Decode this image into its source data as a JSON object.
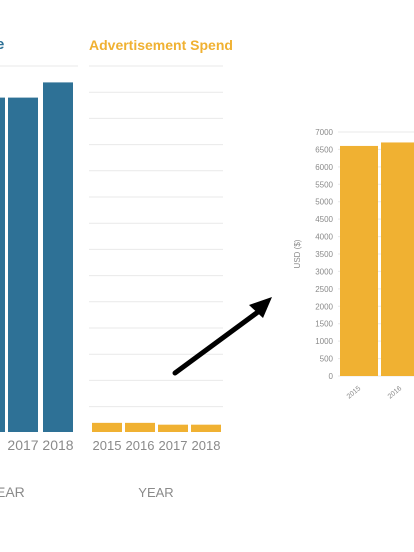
{
  "colors": {
    "revenue_bar": "#2e7196",
    "spend_bar": "#f0b132",
    "grid": "#e9e9e9",
    "axis_text": "#8a8a8a",
    "arrow": "#000000"
  },
  "icons": {
    "arrow": "arrow-icon"
  },
  "chart_data": [
    {
      "type": "bar",
      "panel": "left",
      "title": "e",
      "xlabel": "EAR",
      "categories": [
        "2017",
        "2018"
      ],
      "series": [
        {
          "values": [
            0.88,
            0.92
          ]
        }
      ],
      "note": "values are relative bar heights; axis not visible (cropped)"
    },
    {
      "type": "bar",
      "panel": "middle",
      "title": "Advertisement Spend",
      "xlabel": "YEAR",
      "categories": [
        "2015",
        "2016",
        "2017",
        "2018"
      ],
      "series": [
        {
          "values": [
            0.025,
            0.025,
            0.02,
            0.02
          ]
        }
      ],
      "grid": true
    },
    {
      "type": "bar",
      "panel": "right",
      "ylabel": "USD ($)",
      "ylim": [
        0,
        7000
      ],
      "yticks": [
        "7000",
        "6500",
        "6000",
        "5500",
        "5000",
        "4500",
        "4000",
        "3500",
        "3000",
        "2500",
        "2000",
        "1500",
        "1000",
        "500",
        "0"
      ],
      "categories": [
        "2015",
        "2016"
      ],
      "series": [
        {
          "values": [
            6600,
            6700
          ]
        }
      ],
      "grid": true
    }
  ]
}
